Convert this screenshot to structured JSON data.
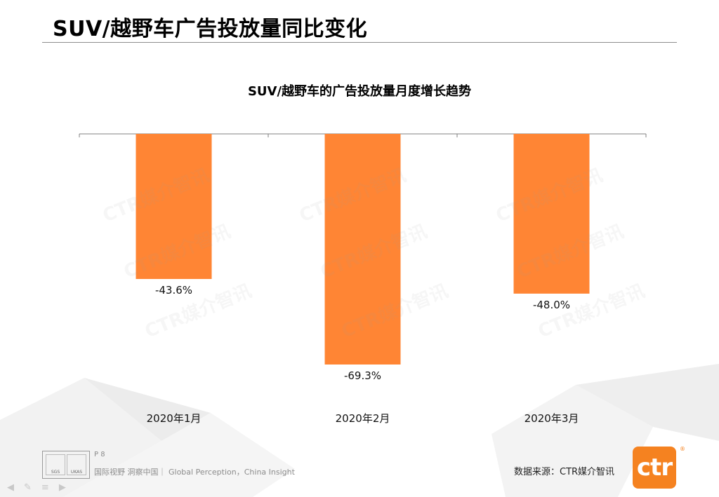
{
  "page": {
    "title": "SUV/越野车广告投放量同比变化"
  },
  "chart_data": {
    "type": "bar",
    "title": "SUV/越野车的广告投放量月度增长趋势",
    "categories": [
      "2020年1月",
      "2020年2月",
      "2020年3月"
    ],
    "values": [
      -43.6,
      -69.3,
      -48.0
    ],
    "data_labels": [
      "-43.6%",
      "-69.3%",
      "-48.0%"
    ],
    "ylim": [
      -69.3,
      0
    ],
    "grid": false,
    "legend": "none",
    "colors": {
      "bar": "#FF8534",
      "axis": "#808080"
    }
  },
  "watermark": {
    "text": "CTR媒介智讯"
  },
  "footer": {
    "page_number": "P 8",
    "slogan": "国际视野  洞察中国｜ Global Perception，China Insight",
    "source": "数据来源：CTR媒介智讯",
    "badge": {
      "left": "SGS",
      "right": "UKAS"
    },
    "logo_text": "ctr",
    "logo_mark": "®"
  },
  "nav_icons": [
    "arrow-left-icon",
    "pen-icon",
    "menu-icon",
    "arrow-right-icon"
  ]
}
